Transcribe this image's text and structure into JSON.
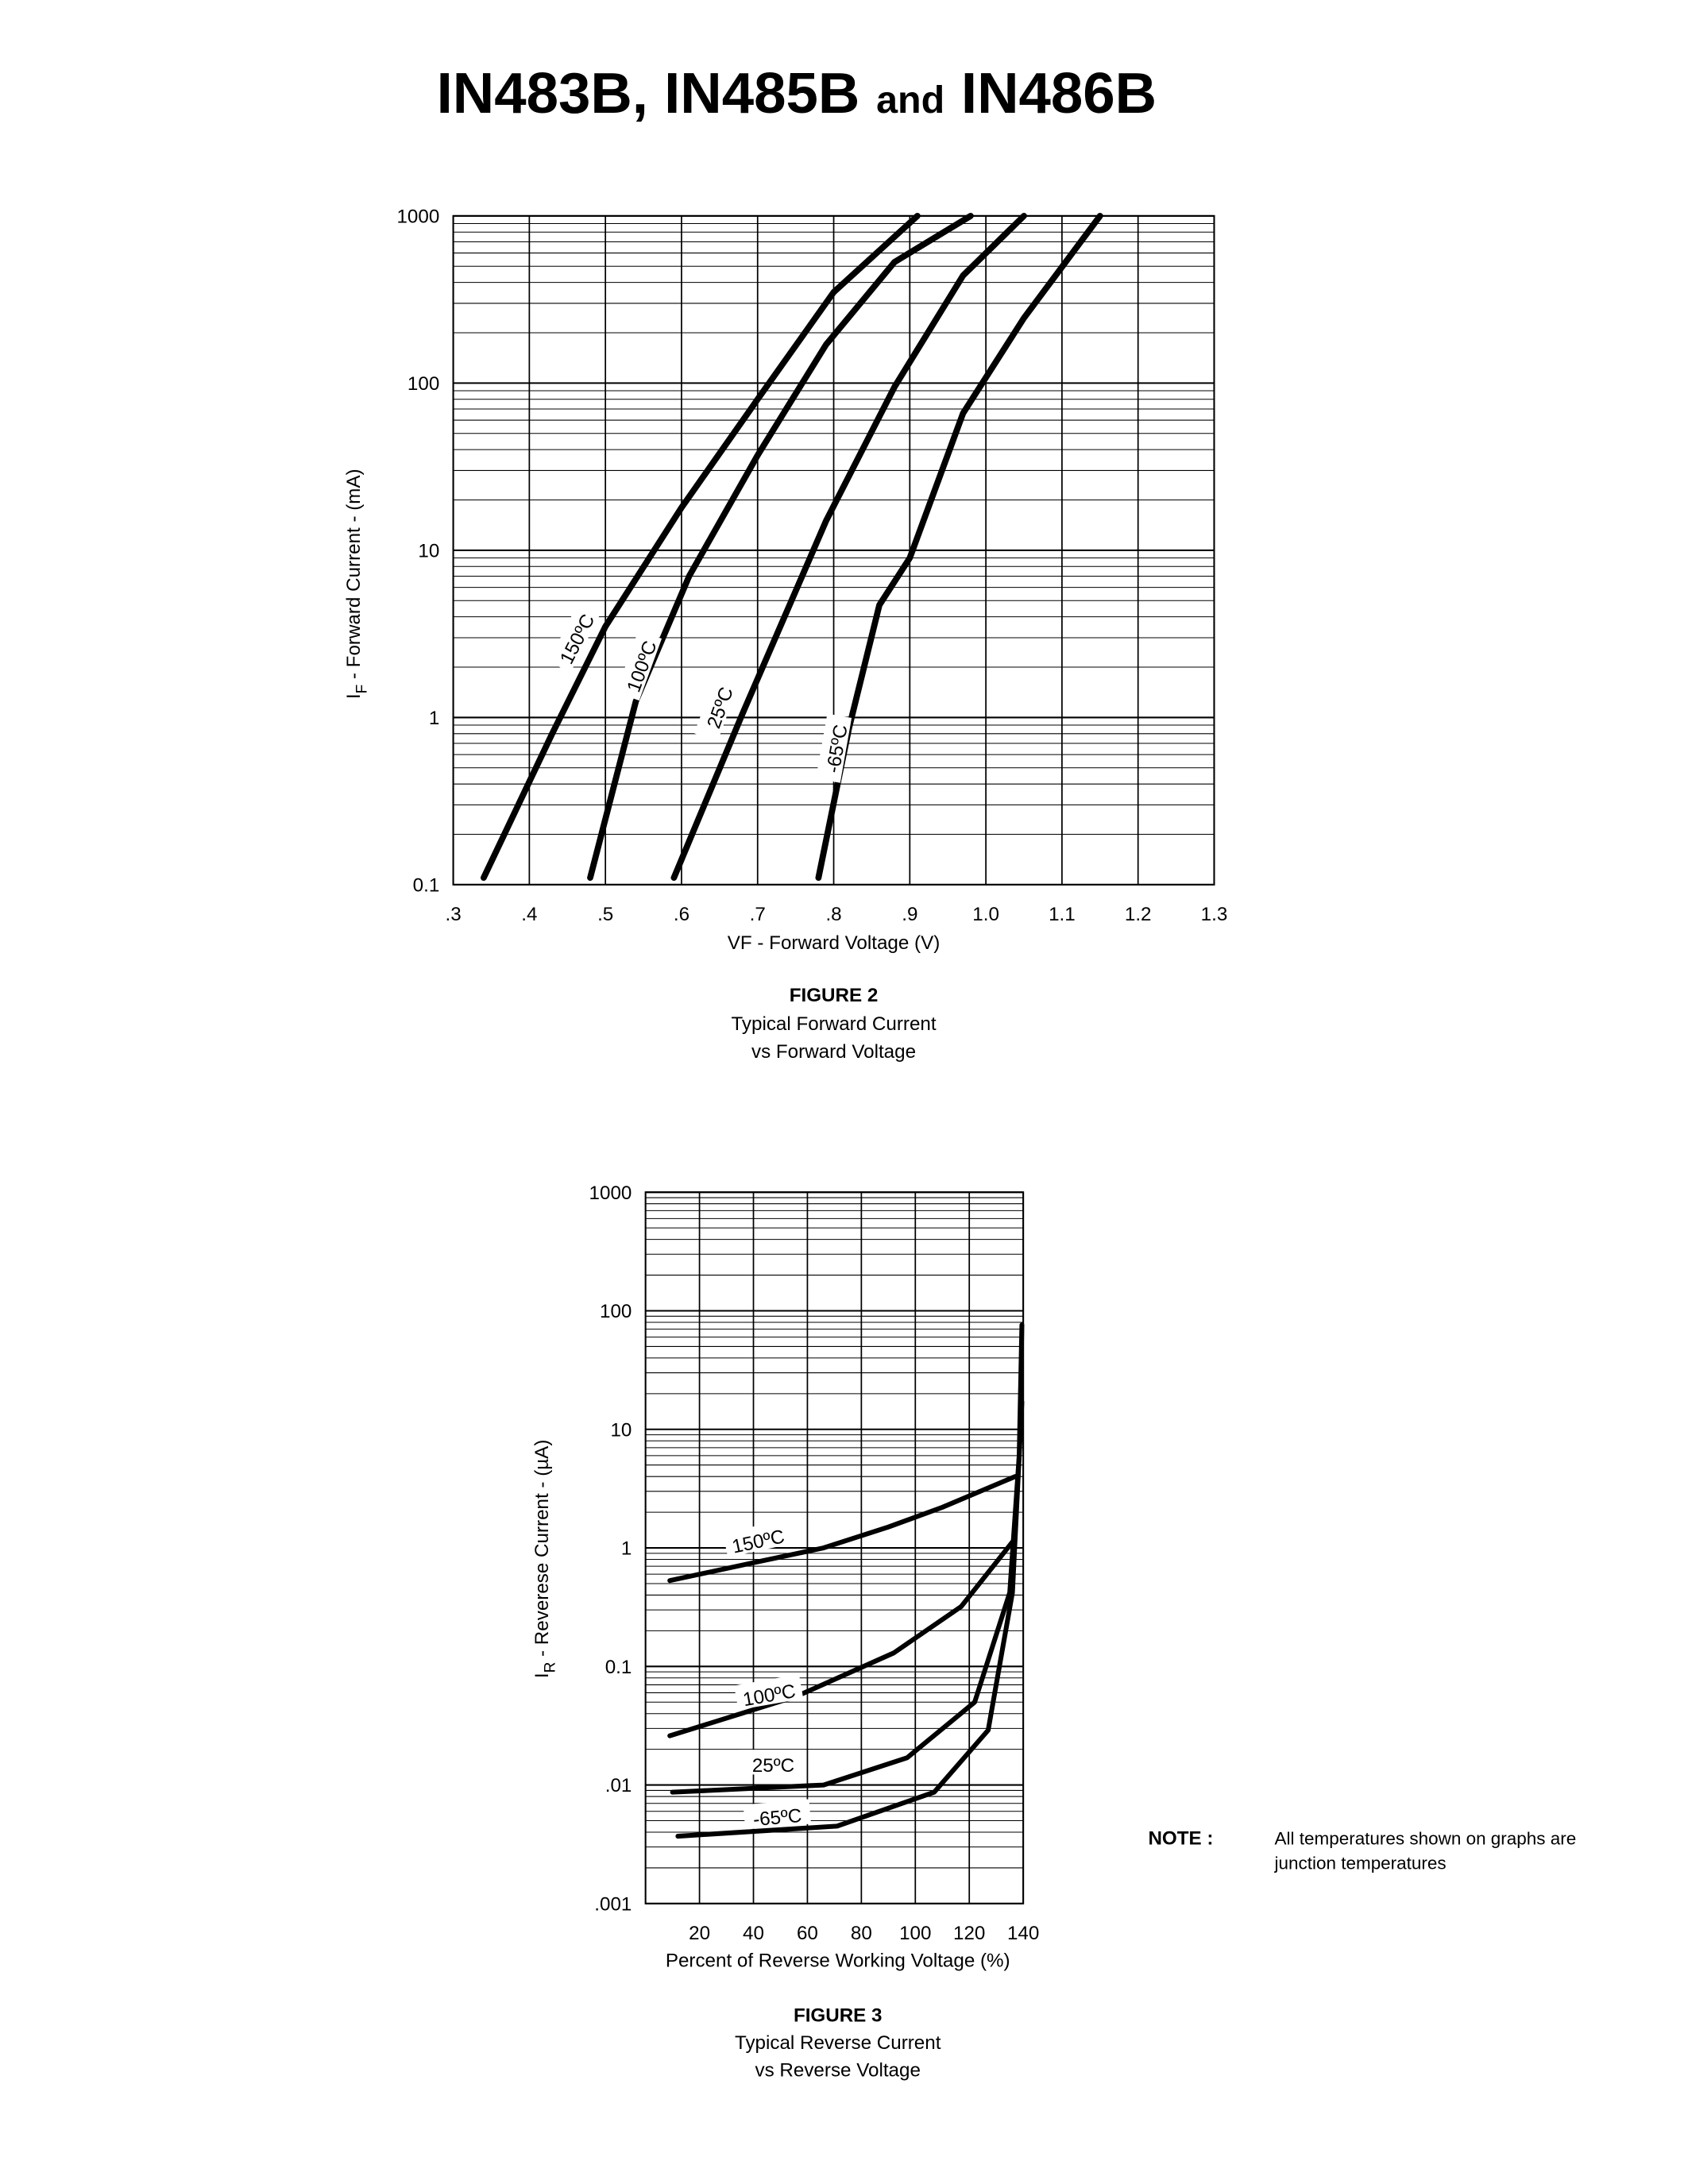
{
  "header": {
    "title_parts": [
      "IN483B, IN485B",
      "and",
      "IN486B"
    ]
  },
  "chart_data": [
    {
      "type": "line",
      "title": "FIGURE 2",
      "subtitle": [
        "Typical Forward Current",
        "vs Forward Voltage"
      ],
      "x_label": "VF - Forward Voltage (V)",
      "y_label_symbol": "I",
      "y_label_subscript": "F",
      "y_label": " - Forward Current - (mA)",
      "log_y": true,
      "grid": true,
      "xlim": [
        0.3,
        1.3
      ],
      "xticks": [
        {
          "value": 0.3,
          "label": ".3"
        },
        {
          "value": 0.4,
          "label": ".4"
        },
        {
          "value": 0.5,
          "label": ".5"
        },
        {
          "value": 0.6,
          "label": ".6"
        },
        {
          "value": 0.7,
          "label": ".7"
        },
        {
          "value": 0.8,
          "label": ".8"
        },
        {
          "value": 0.9,
          "label": ".9"
        },
        {
          "value": 1.0,
          "label": "1.0"
        },
        1.1,
        1.2,
        1.3
      ],
      "ylim": [
        0.1,
        1000
      ],
      "yticks": [
        0.1,
        1,
        10,
        100,
        1000
      ],
      "series": [
        {
          "name": "150ºC",
          "color": "#000000",
          "x": [
            0.34,
            0.43,
            0.5,
            0.6,
            0.7,
            0.8,
            0.91
          ],
          "values": [
            0.11,
            0.8,
            3.5,
            18,
            80,
            350,
            1000
          ]
        },
        {
          "name": "100ºC",
          "color": "#000000",
          "x": [
            0.48,
            0.54,
            0.61,
            0.7,
            0.79,
            0.88,
            0.98
          ],
          "values": [
            0.11,
            1.25,
            7,
            37,
            170,
            530,
            1000
          ]
        },
        {
          "name": "25ºC",
          "color": "#000000",
          "x": [
            0.59,
            0.68,
            0.79,
            0.88,
            0.97,
            1.05
          ],
          "values": [
            0.11,
            1.05,
            15,
            95,
            440,
            1000
          ]
        },
        {
          "name": "-65ºC",
          "color": "#000000",
          "x": [
            0.78,
            0.82,
            0.86,
            0.9,
            0.97,
            1.05,
            1.15
          ],
          "values": [
            0.11,
            0.86,
            4.7,
            9,
            66,
            245,
            1000
          ]
        }
      ]
    },
    {
      "type": "line",
      "title": "FIGURE 3",
      "subtitle": [
        "Typical Reverse Current",
        "vs Reverse Voltage"
      ],
      "x_label": "Percent of Reverse Working Voltage (%)",
      "y_label_symbol": "I",
      "y_label_subscript": "R",
      "y_label": " - Reverese Current - (µA)",
      "log_y": true,
      "grid": true,
      "xlim": [
        0,
        140
      ],
      "xticks": [
        20,
        40,
        60,
        80,
        100,
        120,
        140
      ],
      "ylim": [
        0.001,
        1000
      ],
      "yticks": [
        {
          "value": 0.001,
          "label": ".001"
        },
        {
          "value": 0.01,
          "label": ".01"
        },
        0.1,
        1,
        10,
        100,
        1000
      ],
      "series": [
        {
          "name": "150ºC",
          "color": "#000000",
          "x": [
            9,
            40,
            66,
            90,
            110,
            137
          ],
          "values": [
            0.53,
            0.75,
            1.0,
            1.5,
            2.2,
            4
          ]
        },
        {
          "name": "100ºC",
          "color": "#000000",
          "x": [
            9,
            56,
            92,
            117,
            137
          ],
          "values": [
            0.026,
            0.056,
            0.13,
            0.32,
            1.2
          ]
        },
        {
          "name": "25ºC",
          "color": "#000000",
          "x": [
            10,
            66,
            97,
            122,
            135,
            138.5,
            139.5
          ],
          "values": [
            0.0087,
            0.01,
            0.017,
            0.05,
            0.42,
            6,
            76
          ]
        },
        {
          "name": "-65ºC",
          "color": "#000000",
          "x": [
            12,
            71,
            107,
            127,
            136,
            139.5
          ],
          "values": [
            0.0037,
            0.0045,
            0.0087,
            0.029,
            0.42,
            17
          ]
        }
      ]
    }
  ],
  "note": {
    "label": "NOTE :",
    "lines": [
      "All temperatures shown on graphs are",
      "junction temperatures"
    ]
  }
}
